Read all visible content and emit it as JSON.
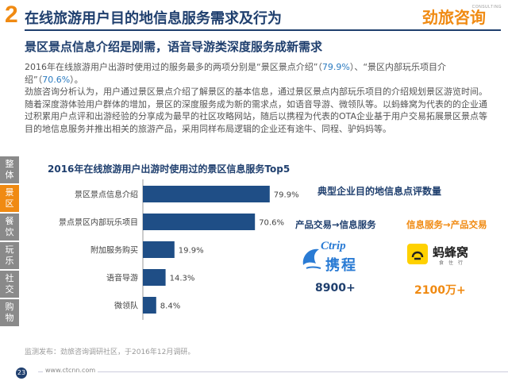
{
  "header": {
    "number": "2",
    "title": "在线旅游用户目的地信息服务需求及行为",
    "logo_main": "劲旅咨询",
    "logo_sub": "CONSULTING"
  },
  "subtitle": "景区景点信息介绍是刚需，语音导游类深度服务成新需求",
  "body": {
    "p1_a": "2016年在线旅游用户出游时使用过的服务最多的两项分别是“景区景点介绍”（",
    "p1_b": "79.9%",
    "p1_c": "）、“景区内部玩乐项目介绍”（",
    "p1_d": "70.6%",
    "p1_e": "）。",
    "p2": "劲旅咨询分析认为，用户通过景区景点介绍了解景区的基本信息，通过景区景点内部玩乐项目的介绍规划景区游览时间。随着深度游体验用户群体的增加，景区的深度服务成为新的需求点，如语音导游、微领队等。以蚂蜂窝为代表的的企业通过积累用户点评和出游经验的分享成为最早的社区攻略网站，随后以携程为代表的OTA企业基于用户交易拓展景区景点等目的地信息服务并推出相关的旅游产品，采用同样布局逻辑的企业还有途牛、同程、驴妈妈等。"
  },
  "side_tabs": [
    {
      "label": "整体",
      "active": false
    },
    {
      "label": "景区",
      "active": true
    },
    {
      "label": "餐饮",
      "active": false
    },
    {
      "label": "玩乐",
      "active": false
    },
    {
      "label": "社交",
      "active": false
    },
    {
      "label": "购物",
      "active": false
    }
  ],
  "chart_data": {
    "type": "bar",
    "orientation": "horizontal",
    "title": "2016年在线旅游用户出游时使用过的景区信息服务Top5",
    "categories": [
      "景区景点信息介绍",
      "景点景区内部玩乐项目",
      "附加服务购买",
      "语音导游",
      "微领队"
    ],
    "values": [
      79.9,
      70.6,
      19.9,
      14.3,
      8.4
    ],
    "value_labels": [
      "79.9%",
      "70.6%",
      "19.9%",
      "14.3%",
      "8.4%"
    ],
    "xlim": [
      0,
      100
    ],
    "bar_color": "#1f4e86",
    "grid": false
  },
  "right_panel": {
    "title": "典型企业目的地信息点评数量",
    "flow1": "产品交易→信息服务",
    "flow2": "信息服务→产品交易",
    "ctrip_en": "Ctrip",
    "ctrip_cn": "携程",
    "mafw_cn": "蚂蜂窝",
    "mafw_sub": "食住行",
    "metric1": "8900+",
    "metric2": "2100万+"
  },
  "source": "监测发布：劲旅咨询调研社区，于2016年12月调研。",
  "footer": {
    "page": "23",
    "url": "www.ctcnn.com"
  },
  "colors": {
    "accent": "#f08a12",
    "navy": "#1f3f6e",
    "highlight": "#2b7bc0"
  }
}
